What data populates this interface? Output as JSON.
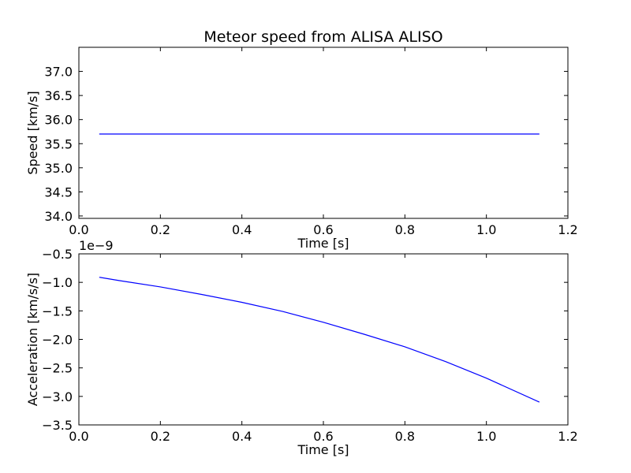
{
  "title": "Meteor speed from  ALISA ALISO",
  "chart_data": [
    {
      "type": "line",
      "xlabel": "Time [s]",
      "ylabel": "Speed [km/s]",
      "xlim": [
        0.0,
        1.2
      ],
      "ylim": [
        33.95,
        37.5
      ],
      "x_ticks": [
        0.0,
        0.2,
        0.4,
        0.6,
        0.8,
        1.0,
        1.2
      ],
      "x_tick_labels": [
        "0.0",
        "0.2",
        "0.4",
        "0.6",
        "0.8",
        "1.0",
        "1.2"
      ],
      "y_ticks": [
        34.0,
        34.5,
        35.0,
        35.5,
        36.0,
        36.5,
        37.0
      ],
      "y_tick_labels": [
        "34.0",
        "34.5",
        "35.0",
        "35.5",
        "36.0",
        "36.5",
        "37.0"
      ],
      "grid": false,
      "color": "#0000ff",
      "series": [
        {
          "x": [
            0.05,
            0.2,
            0.4,
            0.6,
            0.8,
            1.0,
            1.13
          ],
          "y": [
            35.7,
            35.7,
            35.7,
            35.7,
            35.7,
            35.7,
            35.7
          ]
        }
      ]
    },
    {
      "type": "line",
      "xlabel": "Time [s]",
      "ylabel": "Acceleration [km/s/s]",
      "y_offset_label": "1e−9",
      "xlim": [
        0.0,
        1.2
      ],
      "ylim": [
        -3.5,
        -0.5
      ],
      "x_ticks": [
        0.0,
        0.2,
        0.4,
        0.6,
        0.8,
        1.0,
        1.2
      ],
      "x_tick_labels": [
        "0.0",
        "0.2",
        "0.4",
        "0.6",
        "0.8",
        "1.0",
        "1.2"
      ],
      "y_ticks": [
        -3.5,
        -3.0,
        -2.5,
        -2.0,
        -1.5,
        -1.0,
        -0.5
      ],
      "y_tick_labels": [
        "−3.5",
        "−3.0",
        "−2.5",
        "−2.0",
        "−1.5",
        "−1.0",
        "−0.5"
      ],
      "grid": false,
      "color": "#0000ff",
      "series": [
        {
          "x": [
            0.05,
            0.1,
            0.2,
            0.3,
            0.4,
            0.5,
            0.6,
            0.7,
            0.8,
            0.9,
            1.0,
            1.13
          ],
          "y": [
            -0.91,
            -0.97,
            -1.08,
            -1.21,
            -1.35,
            -1.51,
            -1.7,
            -1.91,
            -2.13,
            -2.39,
            -2.68,
            -3.1
          ]
        }
      ]
    }
  ]
}
